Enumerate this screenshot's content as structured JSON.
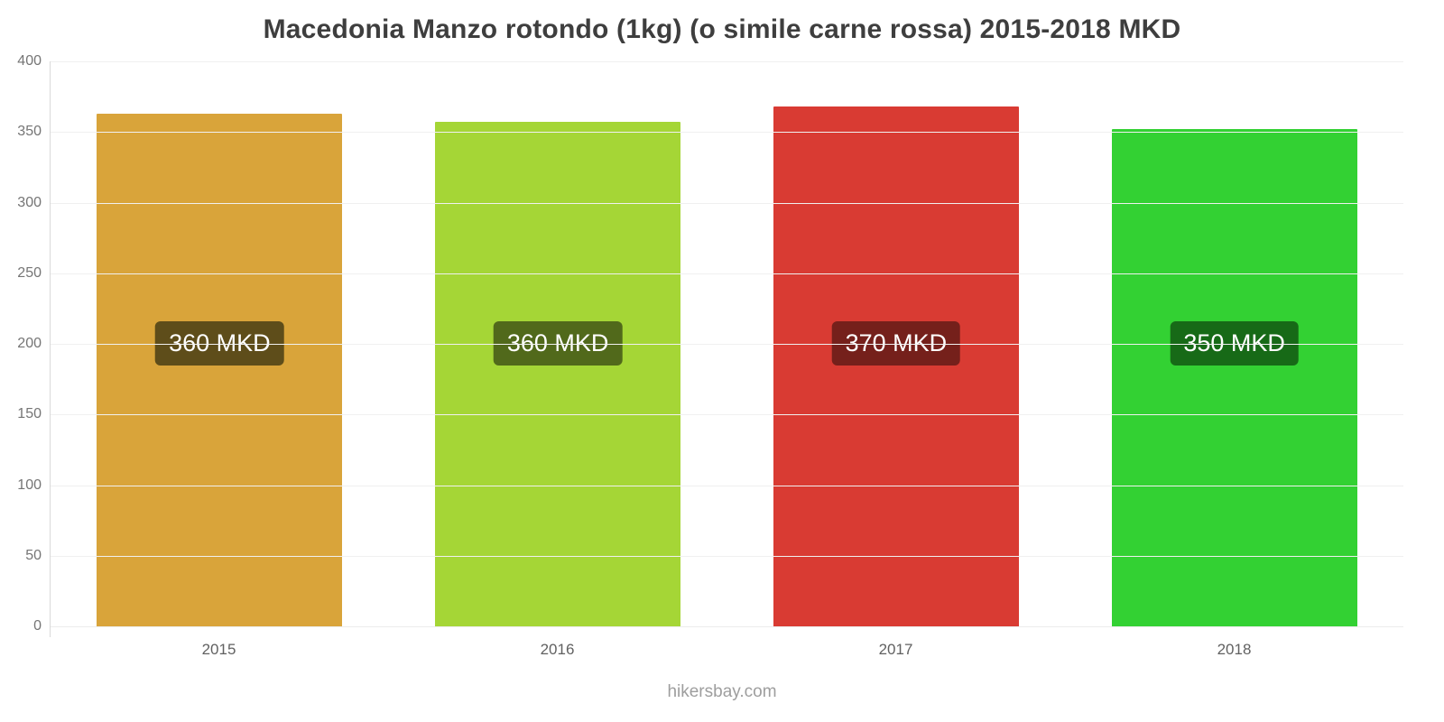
{
  "title": "Macedonia Manzo rotondo (1kg) (o simile carne rossa) 2015-2018 MKD",
  "footer": "hikersbay.com",
  "chart_data": {
    "type": "bar",
    "title": "Macedonia Manzo rotondo (1kg) (o simile carne rossa) 2015-2018 MKD",
    "categories": [
      "2015",
      "2016",
      "2017",
      "2018"
    ],
    "values": [
      363,
      357,
      368,
      352
    ],
    "bar_labels": [
      "360 MKD",
      "360 MKD",
      "370 MKD",
      "350 MKD"
    ],
    "bar_colors": [
      "#d9a43a",
      "#a5d636",
      "#d93b33",
      "#33d133"
    ],
    "label_bg_colors": [
      "#5e4d1a",
      "#51691b",
      "#75201b",
      "#176a17"
    ],
    "xlabel": "",
    "ylabel": "",
    "ylim": [
      0,
      400
    ],
    "ytick_step": 50,
    "grid": true,
    "legend": "none",
    "label_center_value": 200
  }
}
